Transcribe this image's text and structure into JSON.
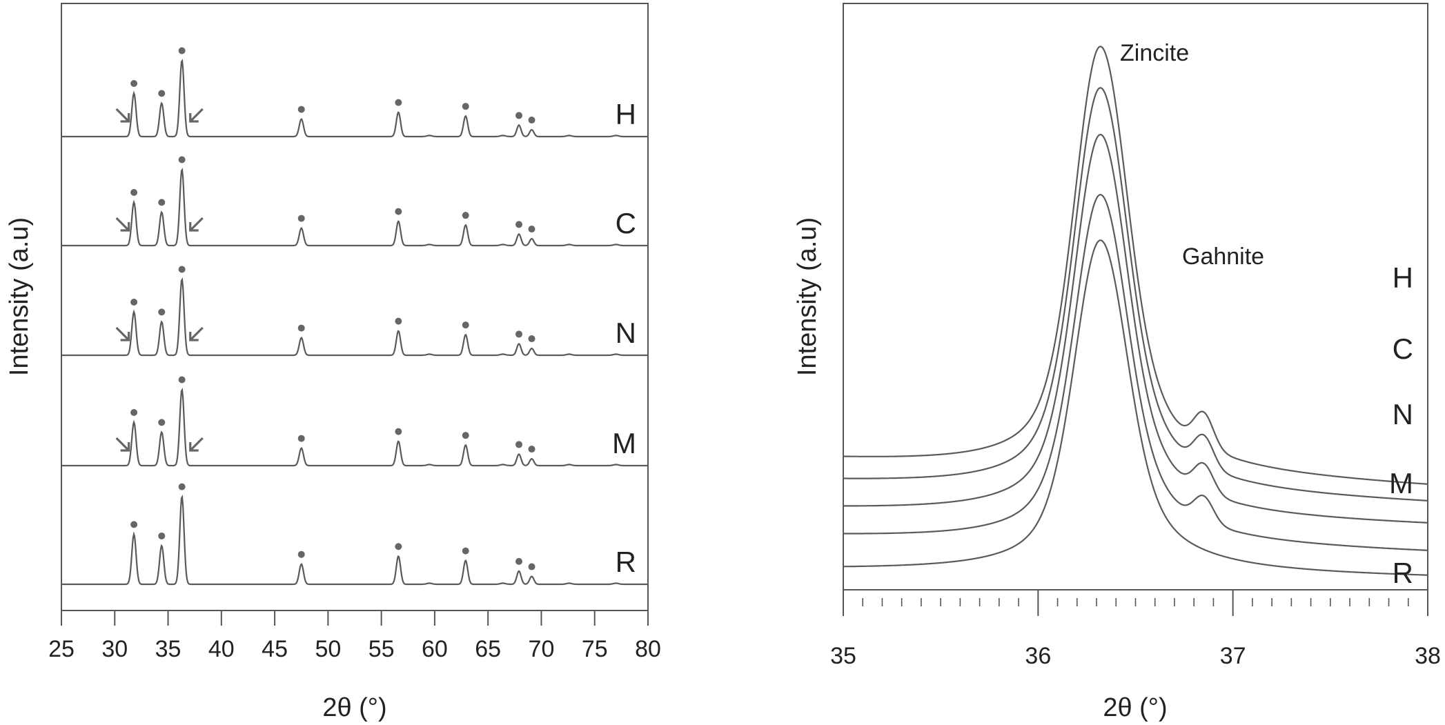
{
  "colors": {
    "line": "#5a5a5a",
    "marker": "#666666",
    "axis": "#555555",
    "text": "#222222"
  },
  "chart_data": [
    {
      "type": "line",
      "xlabel": "2θ (°)",
      "ylabel": "Intensity (a.u)",
      "xlim": [
        25,
        80
      ],
      "xticks": [
        "25",
        "30",
        "35",
        "40",
        "45",
        "50",
        "55",
        "60",
        "65",
        "70",
        "75",
        "80"
      ],
      "grid": false,
      "peaks_2theta": [
        31.8,
        34.4,
        36.3,
        47.5,
        56.6,
        62.9,
        67.9,
        69.1
      ],
      "peak_relative_intensity": [
        0.57,
        0.44,
        1.0,
        0.23,
        0.32,
        0.27,
        0.15,
        0.09
      ],
      "minor_bumps_2theta": [
        59.5,
        66.4,
        72.6,
        77.0
      ],
      "peak_marker": "●",
      "arrow_markers_2theta": [
        30.8,
        37.6
      ],
      "series": [
        {
          "name": "H",
          "peak_scale": 0.85,
          "arrows": true
        },
        {
          "name": "C",
          "peak_scale": 0.85,
          "arrows": true
        },
        {
          "name": "N",
          "peak_scale": 0.85,
          "arrows": true
        },
        {
          "name": "M",
          "peak_scale": 0.85,
          "arrows": true
        },
        {
          "name": "R",
          "peak_scale": 0.98,
          "arrows": false
        }
      ]
    },
    {
      "type": "line",
      "xlabel": "2θ (°)",
      "ylabel": "Intensity (a.u)",
      "xlim": [
        35,
        38
      ],
      "xticks": [
        "35",
        "36",
        "37",
        "38"
      ],
      "minor_tick_step": 0.1,
      "grid": false,
      "annotations": [
        "Zincite",
        "Gahnite"
      ],
      "zincite_peak_2theta": 36.32,
      "gahnite_shoulder_2theta": 36.85,
      "series": [
        {
          "name": "H",
          "baseline_left": 0.22,
          "baseline_right": 0.17,
          "peak": 1.0,
          "shoulder": 0.06
        },
        {
          "name": "C",
          "baseline_left": 0.18,
          "baseline_right": 0.14,
          "peak": 0.92,
          "shoulder": 0.055
        },
        {
          "name": "N",
          "baseline_left": 0.13,
          "baseline_right": 0.1,
          "peak": 0.83,
          "shoulder": 0.05
        },
        {
          "name": "M",
          "baseline_left": 0.08,
          "baseline_right": 0.05,
          "peak": 0.72,
          "shoulder": 0.045
        },
        {
          "name": "R",
          "baseline_left": 0.02,
          "baseline_right": 0.005,
          "peak": 0.63,
          "shoulder": 0.0
        }
      ]
    }
  ]
}
